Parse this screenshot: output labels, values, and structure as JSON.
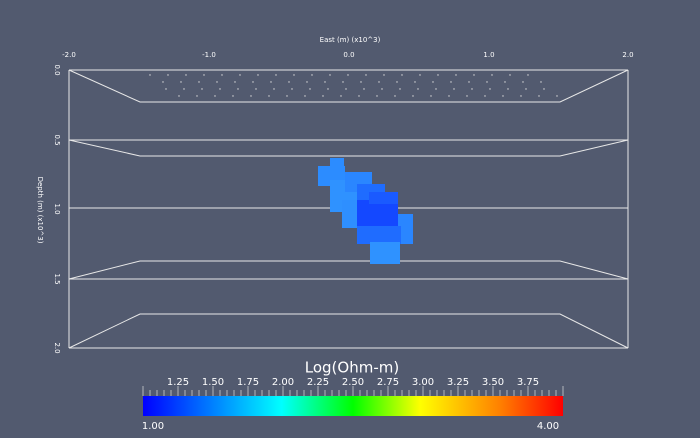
{
  "axes": {
    "x": {
      "title": "East (m) (x10^3)",
      "ticks": [
        "-2.0",
        "-1.0",
        "0.0",
        "1.0",
        "2.0"
      ]
    },
    "y": {
      "title": "Depth (m) (x10^3)",
      "ticks": [
        "0.0",
        "0.5",
        "1.0",
        "1.5",
        "2.0"
      ]
    }
  },
  "colorbar": {
    "title": "Log(Ohm-m)",
    "ticks": [
      "1.25",
      "1.50",
      "1.75",
      "2.00",
      "2.25",
      "2.50",
      "2.75",
      "3.00",
      "3.25",
      "3.50",
      "3.75"
    ],
    "min": "1.00",
    "max": "4.00"
  }
}
